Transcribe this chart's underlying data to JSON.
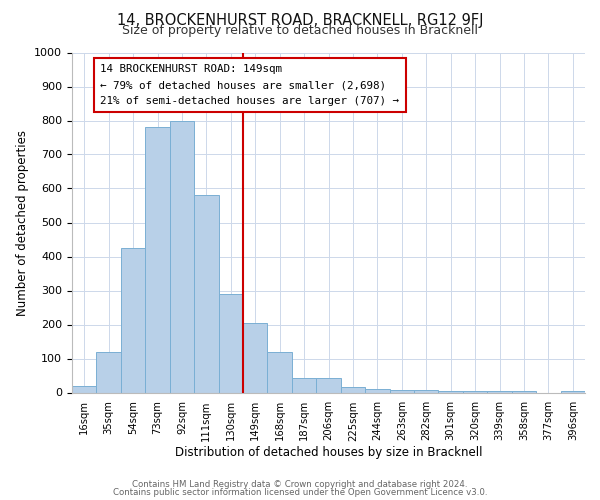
{
  "title": "14, BROCKENHURST ROAD, BRACKNELL, RG12 9FJ",
  "subtitle": "Size of property relative to detached houses in Bracknell",
  "xlabel": "Distribution of detached houses by size in Bracknell",
  "ylabel": "Number of detached properties",
  "bar_labels": [
    "16sqm",
    "35sqm",
    "54sqm",
    "73sqm",
    "92sqm",
    "111sqm",
    "130sqm",
    "149sqm",
    "168sqm",
    "187sqm",
    "206sqm",
    "225sqm",
    "244sqm",
    "263sqm",
    "282sqm",
    "301sqm",
    "320sqm",
    "339sqm",
    "358sqm",
    "377sqm",
    "396sqm"
  ],
  "bar_values": [
    18,
    120,
    425,
    780,
    800,
    580,
    290,
    205,
    120,
    42,
    42,
    15,
    10,
    8,
    7,
    5,
    4,
    3,
    5,
    0,
    5
  ],
  "bar_color": "#b8d0e8",
  "bar_edge_color": "#7aafd4",
  "vline_index": 7,
  "vline_color": "#cc0000",
  "ylim": [
    0,
    1000
  ],
  "yticks": [
    0,
    100,
    200,
    300,
    400,
    500,
    600,
    700,
    800,
    900,
    1000
  ],
  "annotation_title": "14 BROCKENHURST ROAD: 149sqm",
  "annotation_line1": "← 79% of detached houses are smaller (2,698)",
  "annotation_line2": "21% of semi-detached houses are larger (707) →",
  "annotation_box_color": "#ffffff",
  "annotation_border_color": "#cc0000",
  "footer1": "Contains HM Land Registry data © Crown copyright and database right 2024.",
  "footer2": "Contains public sector information licensed under the Open Government Licence v3.0.",
  "background_color": "#ffffff",
  "grid_color": "#cdd8ea",
  "title_fontsize": 10.5,
  "subtitle_fontsize": 9
}
